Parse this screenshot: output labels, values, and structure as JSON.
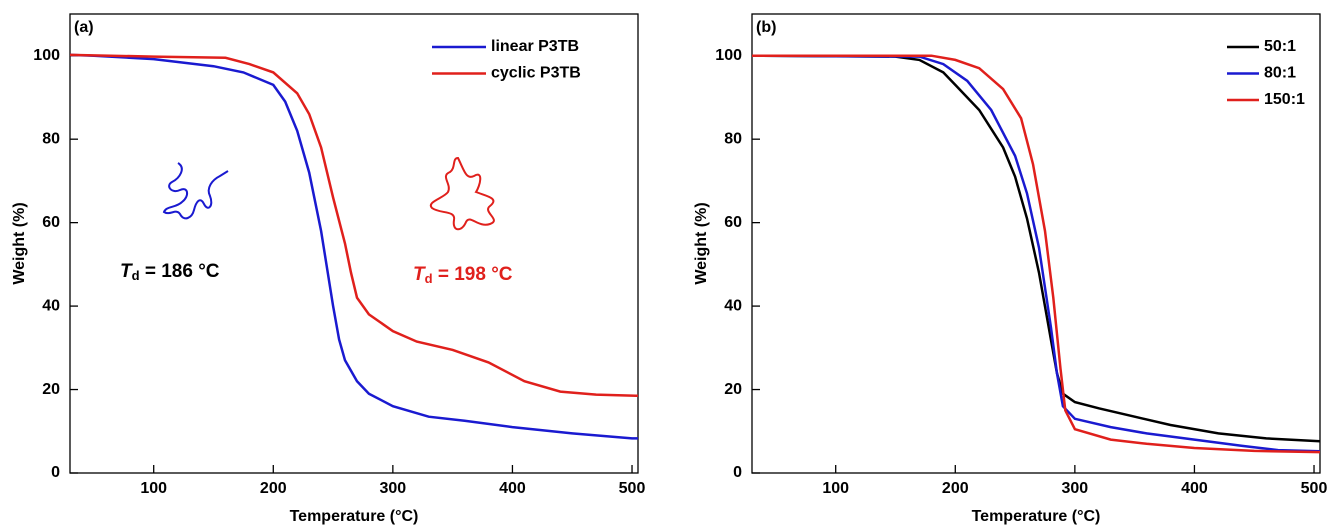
{
  "chart_data": [
    {
      "type": "line",
      "panel_label": "(a)",
      "xlabel": "Temperature (°C)",
      "ylabel": "Weight (%)",
      "xlim": [
        30,
        505
      ],
      "ylim": [
        0,
        110
      ],
      "xticks": [
        100,
        200,
        300,
        400,
        500
      ],
      "yticks": [
        0,
        20,
        40,
        60,
        80,
        100
      ],
      "legend": "upper right",
      "annotations": [
        {
          "symbol": "T",
          "subscript": "d",
          "text": " = 186 °C",
          "color": "#000000"
        },
        {
          "symbol": "T",
          "subscript": "d",
          "text": " = 198 °C",
          "color": "#e0201c"
        }
      ],
      "series": [
        {
          "name": "linear P3TB",
          "color": "#1a1ad0",
          "x": [
            30,
            50,
            100,
            150,
            175,
            200,
            210,
            220,
            230,
            240,
            250,
            255,
            260,
            270,
            280,
            300,
            330,
            360,
            400,
            450,
            500,
            505
          ],
          "values": [
            100.2,
            100,
            99.2,
            97.5,
            96,
            93,
            89,
            82,
            72,
            58,
            40,
            32,
            27,
            22,
            19,
            16,
            13.5,
            12.5,
            11,
            9.5,
            8.3,
            8.3
          ]
        },
        {
          "name": "cyclic P3TB",
          "color": "#e0201c",
          "x": [
            30,
            100,
            160,
            180,
            200,
            220,
            230,
            240,
            250,
            260,
            265,
            270,
            280,
            300,
            320,
            350,
            380,
            410,
            440,
            470,
            505
          ],
          "values": [
            100.2,
            99.8,
            99.5,
            98,
            96,
            91,
            86,
            78,
            66,
            55,
            48,
            42,
            38,
            34,
            31.5,
            29.5,
            26.5,
            22,
            19.5,
            18.8,
            18.5
          ]
        }
      ]
    },
    {
      "type": "line",
      "panel_label": "(b)",
      "xlabel": "Temperature (°C)",
      "ylabel": "Weight (%)",
      "xlim": [
        30,
        505
      ],
      "ylim": [
        0,
        110
      ],
      "xticks": [
        100,
        200,
        300,
        400,
        500
      ],
      "yticks": [
        0,
        20,
        40,
        60,
        80,
        100
      ],
      "legend": "upper right",
      "series": [
        {
          "name": "50:1",
          "color": "#000000",
          "x": [
            30,
            150,
            170,
            190,
            200,
            220,
            240,
            250,
            260,
            270,
            280,
            285,
            290,
            300,
            320,
            350,
            380,
            420,
            460,
            505
          ],
          "values": [
            100,
            99.8,
            99,
            96,
            93,
            87,
            78,
            71,
            61,
            48,
            32,
            24,
            19,
            17,
            15.5,
            13.5,
            11.5,
            9.5,
            8.3,
            7.6
          ]
        },
        {
          "name": "80:1",
          "color": "#1a1ad0",
          "x": [
            30,
            170,
            190,
            210,
            230,
            250,
            260,
            270,
            280,
            285,
            290,
            300,
            330,
            360,
            400,
            440,
            470,
            505
          ],
          "values": [
            100,
            99.8,
            98,
            94,
            87,
            76,
            67,
            54,
            35,
            24,
            16,
            13,
            11,
            9.5,
            8,
            6.5,
            5.5,
            5.2
          ]
        },
        {
          "name": "150:1",
          "color": "#e0201c",
          "x": [
            30,
            180,
            200,
            220,
            240,
            255,
            265,
            275,
            282,
            288,
            292,
            300,
            330,
            360,
            400,
            450,
            505
          ],
          "values": [
            100,
            100,
            99,
            97,
            92,
            85,
            74,
            58,
            42,
            25,
            15,
            10.5,
            8,
            7,
            6,
            5.3,
            5
          ]
        }
      ]
    }
  ]
}
